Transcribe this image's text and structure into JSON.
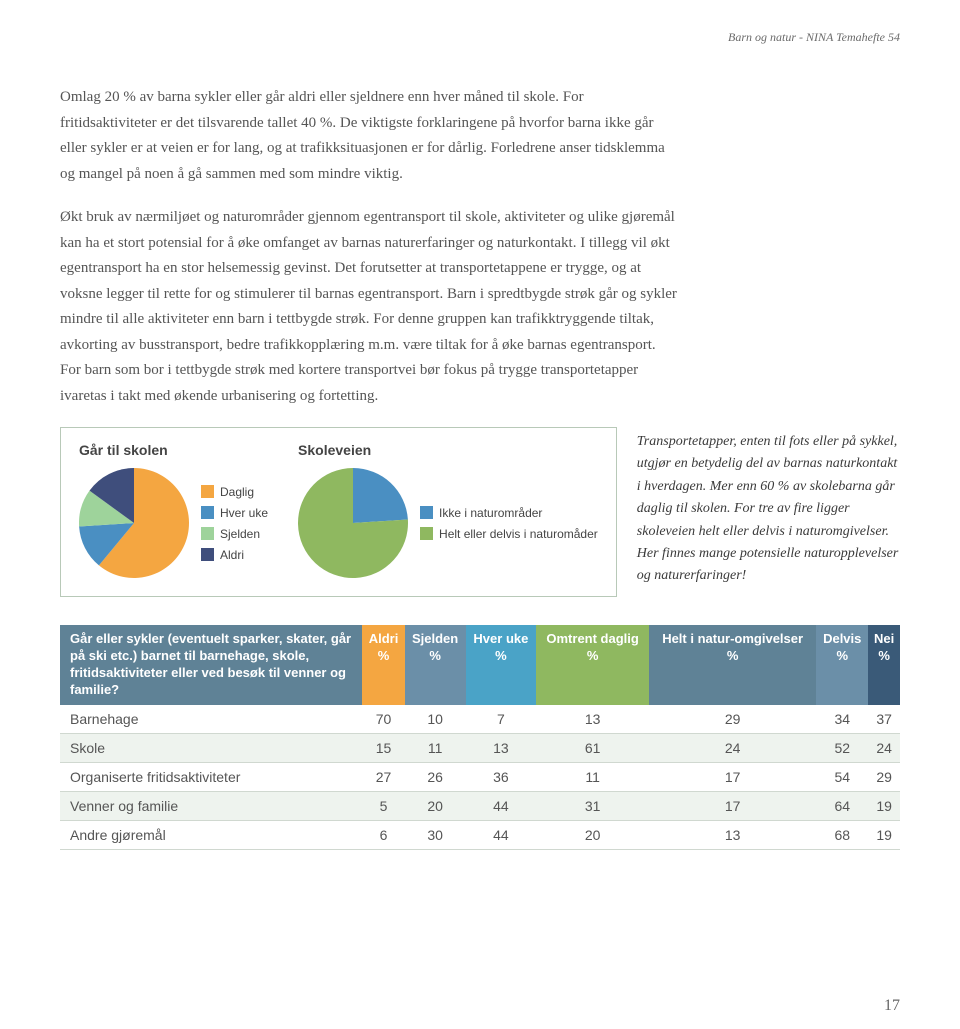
{
  "header": {
    "running": "Barn og natur - NINA Temahefte 54"
  },
  "paragraphs": {
    "p1": "Omlag 20 % av barna sykler eller går aldri eller sjeldnere enn hver måned til skole. For fritidsaktiviteter er det tilsvarende tallet 40 %. De viktigste forklaringene på hvorfor barna ikke går eller sykler er at veien er for lang, og at trafikksituasjonen er for dårlig. Forledrene anser tidsklemma og mangel på noen å gå sammen med som mindre viktig.",
    "p2": "Økt bruk av nærmiljøet og naturområder gjennom egentransport til skole, aktiviteter og ulike gjøremål kan ha et stort potensial for å øke omfanget av barnas naturerfaringer og naturkontakt. I tillegg vil økt egentransport ha en stor helsemessig gevinst. Det forutsetter at transportetappene er trygge, og at voksne legger til rette for og stimulerer til barnas egentransport. Barn i spredtbygde strøk går og sykler mindre til alle aktiviteter enn barn i tettbygde strøk. For denne gruppen kan trafikktryggende tiltak, avkorting av busstransport, bedre trafikkopplæring m.m. være tiltak for å øke barnas egentransport. For barn som bor i tettbygde strøk med kortere transportvei bør fokus på trygge transportetapper ivaretas i takt med økende urbanisering og fortetting."
  },
  "pie1": {
    "title": "Går til skolen",
    "legend": [
      {
        "label": "Daglig",
        "color": "#f4a641"
      },
      {
        "label": "Hver uke",
        "color": "#4a8fc2"
      },
      {
        "label": "Sjelden",
        "color": "#9ed39b"
      },
      {
        "label": "Aldri",
        "color": "#3f4e7c"
      }
    ],
    "slices": [
      {
        "value": 61,
        "color": "#f4a641"
      },
      {
        "value": 13,
        "color": "#4a8fc2"
      },
      {
        "value": 11,
        "color": "#9ed39b"
      },
      {
        "value": 15,
        "color": "#3f4e7c"
      }
    ],
    "radius": 55
  },
  "pie2": {
    "title": "Skoleveien",
    "legend": [
      {
        "label": "Ikke i naturområder",
        "color": "#4a8fc2"
      },
      {
        "label": "Helt eller delvis i naturomåder",
        "color": "#8fb860"
      }
    ],
    "slices": [
      {
        "value": 24,
        "color": "#4a8fc2"
      },
      {
        "value": 76,
        "color": "#8fb860"
      }
    ],
    "radius": 55
  },
  "caption": "Transportetapper, enten til fots eller på sykkel, utgjør en betydelig del av barnas naturkontakt i hverdagen. Mer enn 60 % av skolebarna går daglig til skolen. For tre av fire ligger skoleveien helt eller delvis i naturomgivelser. Her finnes mange potensielle naturopplevelser og naturerfaringer!",
  "table": {
    "header_bg": "#5f8296",
    "headers": [
      "Går eller sykler (eventuelt sparker, skater, går på ski etc.) barnet til barnehage, skole, fritidsaktiviteter eller ved besøk til venner og familie?",
      "Aldri %",
      "Sjelden %",
      "Hver uke %",
      "Omtrent daglig %",
      "Helt i natur-omgivelser %",
      "Delvis %",
      "Nei %"
    ],
    "header_colors": [
      "#5f8296",
      "#f4a641",
      "#6b8fa8",
      "#4aa3c7",
      "#8fb860",
      "#5f8296",
      "#6b8fa8",
      "#3a5a78"
    ],
    "rows": [
      {
        "label": "Barnehage",
        "cells": [
          "70",
          "10",
          "7",
          "13",
          "29",
          "34",
          "37"
        ],
        "striped": false
      },
      {
        "label": "Skole",
        "cells": [
          "15",
          "11",
          "13",
          "61",
          "24",
          "52",
          "24"
        ],
        "striped": true
      },
      {
        "label": "Organiserte fritidsaktiviteter",
        "cells": [
          "27",
          "26",
          "36",
          "11",
          "17",
          "54",
          "29"
        ],
        "striped": false
      },
      {
        "label": "Venner og familie",
        "cells": [
          "5",
          "20",
          "44",
          "31",
          "17",
          "64",
          "19"
        ],
        "striped": true
      },
      {
        "label": "Andre gjøremål",
        "cells": [
          "6",
          "30",
          "44",
          "20",
          "13",
          "68",
          "19"
        ],
        "striped": false
      }
    ]
  },
  "page_number": "17"
}
